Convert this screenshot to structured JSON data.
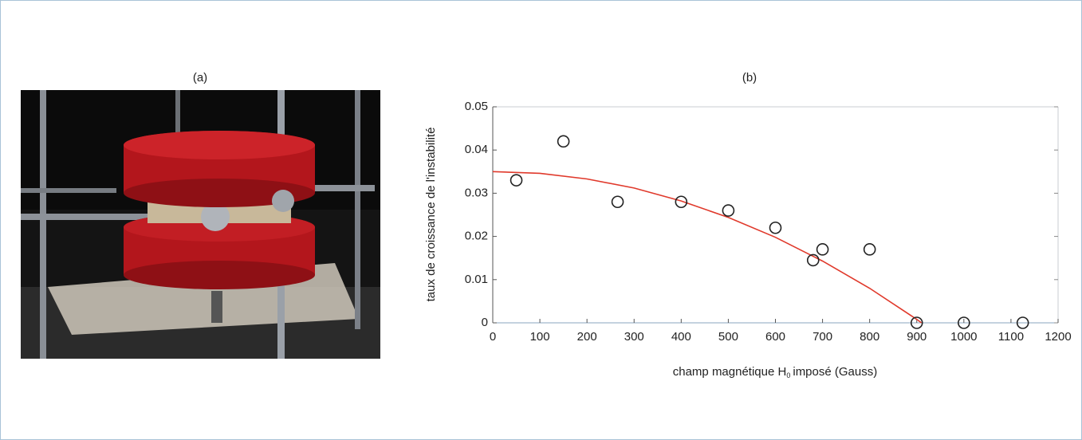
{
  "photo_label": "(a)",
  "chart_data": {
    "type": "scatter",
    "title": "(b)",
    "xlabel": "champ magnétique H",
    "xlabel_subscript": "0",
    "xlabel_rest": "imposé (Gauss)",
    "ylabel": "taux de croissance de l'instabilité",
    "xlim": [
      0,
      1200
    ],
    "ylim": [
      0,
      0.05
    ],
    "xticks": [
      0,
      100,
      200,
      300,
      400,
      500,
      600,
      700,
      800,
      900,
      1000,
      1100,
      1200
    ],
    "yticks": [
      0,
      0.01,
      0.02,
      0.03,
      0.04,
      0.05
    ],
    "series": [
      {
        "style": "markers",
        "color": "#222222",
        "x": [
          50,
          150,
          265,
          400,
          500,
          600,
          680,
          700,
          800,
          900,
          1000,
          1125
        ],
        "values": [
          0.033,
          0.042,
          0.028,
          0.028,
          0.026,
          0.022,
          0.0145,
          0.017,
          0.017,
          0,
          0,
          0
        ]
      },
      {
        "style": "line",
        "color": "#e0392b",
        "x": [
          0,
          100,
          200,
          300,
          400,
          500,
          600,
          700,
          800,
          900,
          910
        ],
        "values": [
          0.035,
          0.0346,
          0.0333,
          0.0312,
          0.0282,
          0.0244,
          0.0198,
          0.0143,
          0.008,
          0.0008,
          0
        ]
      }
    ]
  }
}
